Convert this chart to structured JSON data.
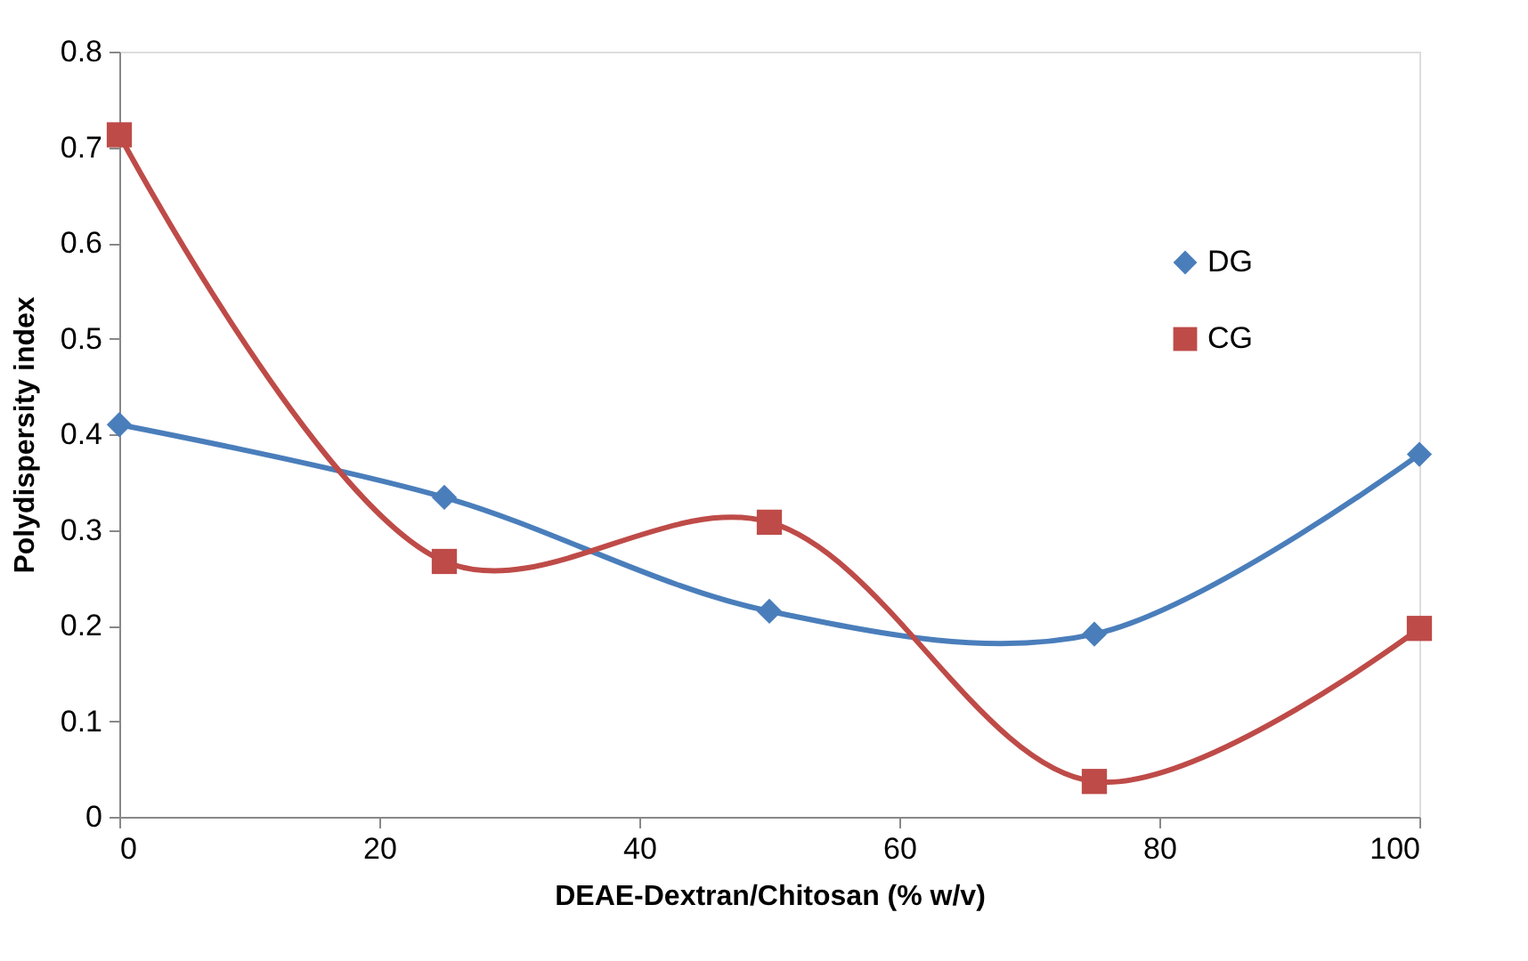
{
  "chart_data": {
    "type": "line",
    "xlabel": "DEAE-Dextran/Chitosan (% w/v)",
    "ylabel": "Polydispersity index",
    "x": [
      0,
      25,
      50,
      75,
      100
    ],
    "series": [
      {
        "name": "DG",
        "color": "#4a7ebb",
        "marker": "diamond",
        "values": [
          0.41,
          0.334,
          0.215,
          0.191,
          0.379
        ]
      },
      {
        "name": "CG",
        "color": "#be4b48",
        "marker": "square",
        "values": [
          0.713,
          0.267,
          0.308,
          0.037,
          0.197
        ]
      }
    ],
    "xlim": [
      0,
      100
    ],
    "xticks": [
      0,
      20,
      40,
      60,
      80,
      100
    ],
    "ylim": [
      0,
      0.8
    ],
    "yticks": [
      0,
      0.1,
      0.2,
      0.3,
      0.4,
      0.5,
      0.6,
      0.7,
      0.8
    ],
    "grid": false,
    "legend": "right",
    "line_style": "solid"
  }
}
